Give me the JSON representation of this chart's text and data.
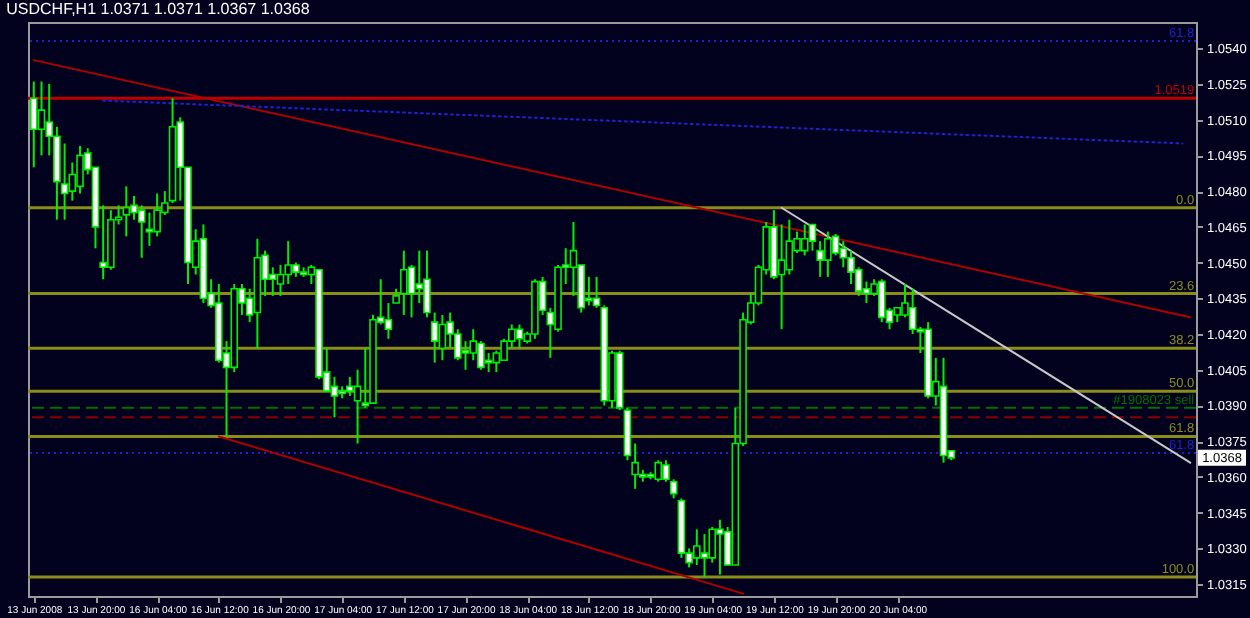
{
  "chart_data": {
    "type": "candlestick",
    "title": "USDCHF,H1 1.0371 1.0371 1.0367 1.0368",
    "categories": [
      "13 Jun 2008",
      null,
      null,
      null,
      null,
      null,
      null,
      null,
      "13 Jun 20:00",
      null,
      null,
      null,
      null,
      null,
      null,
      null,
      "16 Jun 04:00",
      null,
      null,
      null,
      null,
      null,
      null,
      null,
      "16 Jun 12:00",
      null,
      null,
      null,
      null,
      null,
      null,
      null,
      "16 Jun 20:00",
      null,
      null,
      null,
      null,
      null,
      null,
      null,
      "17 Jun 04:00",
      null,
      null,
      null,
      null,
      null,
      null,
      null,
      "17 Jun 12:00",
      null,
      null,
      null,
      null,
      null,
      null,
      null,
      "17 Jun 20:00",
      null,
      null,
      null,
      null,
      null,
      null,
      null,
      "18 Jun 04:00",
      null,
      null,
      null,
      null,
      null,
      null,
      null,
      "18 Jun 12:00",
      null,
      null,
      null,
      null,
      null,
      null,
      null,
      "18 Jun 20:00",
      null,
      null,
      null,
      null,
      null,
      null,
      null,
      "19 Jun 04:00",
      null,
      null,
      null,
      null,
      null,
      null,
      null,
      "19 Jun 12:00",
      null,
      null,
      null,
      null,
      null,
      null,
      null,
      "19 Jun 20:00",
      null,
      null,
      null,
      null,
      null,
      null,
      null,
      "20 Jun 04:00",
      null,
      null,
      null,
      null,
      null,
      null,
      null,
      null,
      null,
      null,
      null,
      null,
      null,
      null,
      null,
      null,
      null,
      null,
      null,
      null,
      null,
      null,
      null,
      null,
      null,
      null,
      null,
      null,
      null,
      null,
      null,
      null,
      null,
      null,
      null,
      null,
      null,
      null
    ],
    "ohlc": [
      [
        1.0519,
        1.0526,
        1.049,
        1.0506
      ],
      [
        1.0506,
        1.0526,
        1.0495,
        1.0514
      ],
      [
        1.0509,
        1.0525,
        1.0495,
        1.0503
      ],
      [
        1.0503,
        1.0507,
        1.0468,
        1.0484
      ],
      [
        1.0483,
        1.05,
        1.0468,
        1.0479
      ],
      [
        1.048,
        1.0492,
        1.0476,
        1.0487
      ],
      [
        1.0482,
        1.0499,
        1.0479,
        1.0495
      ],
      [
        1.0496,
        1.0498,
        1.0487,
        1.0489
      ],
      [
        1.049,
        1.049,
        1.0456,
        1.0465
      ],
      [
        1.045,
        1.0474,
        1.0443,
        1.0448
      ],
      [
        1.0448,
        1.0472,
        1.0447,
        1.0468
      ],
      [
        1.0468,
        1.0474,
        1.0466,
        1.0469
      ],
      [
        1.047,
        1.0482,
        1.0461,
        1.0473
      ],
      [
        1.0474,
        1.0478,
        1.0468,
        1.0471
      ],
      [
        1.0472,
        1.0474,
        1.0452,
        1.0467
      ],
      [
        1.0464,
        1.0471,
        1.0457,
        1.0463
      ],
      [
        1.0463,
        1.0479,
        1.0461,
        1.0472
      ],
      [
        1.0471,
        1.048,
        1.047,
        1.0475
      ],
      [
        1.0476,
        1.0519,
        1.0475,
        1.0507
      ],
      [
        1.0509,
        1.0511,
        1.0476,
        1.049
      ],
      [
        1.049,
        1.049,
        1.0441,
        1.045
      ],
      [
        1.0448,
        1.0464,
        1.0445,
        1.0459
      ],
      [
        1.046,
        1.0466,
        1.0433,
        1.0435
      ],
      [
        1.0437,
        1.0443,
        1.0431,
        1.0432
      ],
      [
        1.0433,
        1.0441,
        1.0408,
        1.0409
      ],
      [
        1.0412,
        1.0417,
        1.0377,
        1.0406
      ],
      [
        1.0406,
        1.0441,
        1.0404,
        1.0439
      ],
      [
        1.0439,
        1.0441,
        1.0428,
        1.0433
      ],
      [
        1.0435,
        1.0439,
        1.0425,
        1.0428
      ],
      [
        1.0429,
        1.046,
        1.0414,
        1.0452
      ],
      [
        1.0453,
        1.0455,
        1.0436,
        1.0443
      ],
      [
        1.0445,
        1.0448,
        1.0436,
        1.0443
      ],
      [
        1.0441,
        1.0449,
        1.0436,
        1.0445
      ],
      [
        1.0445,
        1.0459,
        1.0441,
        1.0449
      ],
      [
        1.0449,
        1.045,
        1.0444,
        1.0446
      ],
      [
        1.0446,
        1.0448,
        1.0444,
        1.0445
      ],
      [
        1.0445,
        1.0449,
        1.0441,
        1.0448
      ],
      [
        1.0447,
        1.0447,
        1.0401,
        1.0402
      ],
      [
        1.0404,
        1.0414,
        1.0396,
        1.0396
      ],
      [
        1.0398,
        1.0402,
        1.0385,
        1.0394
      ],
      [
        1.0396,
        1.0398,
        1.0393,
        1.0395
      ],
      [
        1.0398,
        1.0402,
        1.0394,
        1.0396
      ],
      [
        1.0392,
        1.0405,
        1.0374,
        1.0398
      ],
      [
        1.0391,
        1.0414,
        1.0389,
        1.039
      ],
      [
        1.0391,
        1.0428,
        1.0391,
        1.0426
      ],
      [
        1.0427,
        1.0443,
        1.0424,
        1.0425
      ],
      [
        1.0426,
        1.0433,
        1.0418,
        1.0422
      ],
      [
        1.0433,
        1.0439,
        1.0433,
        1.0436
      ],
      [
        1.0437,
        1.0455,
        1.0428,
        1.0447
      ],
      [
        1.0448,
        1.0449,
        1.0427,
        1.0437
      ],
      [
        1.0441,
        1.0455,
        1.0433,
        1.0439
      ],
      [
        1.0443,
        1.0455,
        1.0427,
        1.0429
      ],
      [
        1.0425,
        1.0429,
        1.0408,
        1.0417
      ],
      [
        1.0414,
        1.0428,
        1.0409,
        1.0424
      ],
      [
        1.0425,
        1.0429,
        1.0414,
        1.042
      ],
      [
        1.042,
        1.0422,
        1.0409,
        1.041
      ],
      [
        1.0413,
        1.0417,
        1.0405,
        1.0412
      ],
      [
        1.0412,
        1.0422,
        1.0409,
        1.0417
      ],
      [
        1.0416,
        1.0417,
        1.0405,
        1.0406
      ],
      [
        1.0409,
        1.0412,
        1.0404,
        1.0408
      ],
      [
        1.0408,
        1.0413,
        1.0404,
        1.0412
      ],
      [
        1.0409,
        1.0418,
        1.0409,
        1.0417
      ],
      [
        1.0417,
        1.0424,
        1.0414,
        1.0422
      ],
      [
        1.0422,
        1.0424,
        1.0414,
        1.0418
      ],
      [
        1.0417,
        1.0421,
        1.0416,
        1.042
      ],
      [
        1.042,
        1.0443,
        1.0418,
        1.0442
      ],
      [
        1.0442,
        1.0444,
        1.0428,
        1.043
      ],
      [
        1.0429,
        1.0431,
        1.041,
        1.0424
      ],
      [
        1.0422,
        1.0449,
        1.0421,
        1.0448
      ],
      [
        1.0449,
        1.0456,
        1.0441,
        1.0448
      ],
      [
        1.0448,
        1.0467,
        1.0436,
        1.0455
      ],
      [
        1.0449,
        1.0449,
        1.0429,
        1.0431
      ],
      [
        1.0435,
        1.0444,
        1.0432,
        1.0434
      ],
      [
        1.0435,
        1.0444,
        1.0431,
        1.0432
      ],
      [
        1.0431,
        1.0432,
        1.039,
        1.0392
      ],
      [
        1.0392,
        1.0413,
        1.0389,
        1.0412
      ],
      [
        1.0412,
        1.0413,
        1.0388,
        1.0389
      ],
      [
        1.0388,
        1.0389,
        1.0367,
        1.0369
      ],
      [
        1.0361,
        1.0374,
        1.0355,
        1.0366
      ],
      [
        1.0361,
        1.0363,
        1.0358,
        1.036
      ],
      [
        1.0361,
        1.0362,
        1.0359,
        1.036
      ],
      [
        1.0359,
        1.0367,
        1.0358,
        1.0366
      ],
      [
        1.0365,
        1.0367,
        1.0358,
        1.0359
      ],
      [
        1.0358,
        1.0359,
        1.0351,
        1.0353
      ],
      [
        1.035,
        1.0351,
        1.0326,
        1.0328
      ],
      [
        1.0328,
        1.033,
        1.0322,
        1.0324
      ],
      [
        1.0326,
        1.0338,
        1.0323,
        1.0331
      ],
      [
        1.0328,
        1.0336,
        1.0318,
        1.0326
      ],
      [
        1.0326,
        1.0339,
        1.0324,
        1.0338
      ],
      [
        1.0338,
        1.0342,
        1.0319,
        1.0336
      ],
      [
        1.0337,
        1.0339,
        1.0323,
        1.0323
      ],
      [
        1.0323,
        1.0389,
        1.0323,
        1.0374
      ],
      [
        1.0374,
        1.0429,
        1.0373,
        1.0426
      ],
      [
        1.0425,
        1.0437,
        1.0424,
        1.0433
      ],
      [
        1.0433,
        1.0449,
        1.0432,
        1.0448
      ],
      [
        1.0447,
        1.0467,
        1.0445,
        1.0465
      ],
      [
        1.0465,
        1.0472,
        1.0443,
        1.0444
      ],
      [
        1.0445,
        1.0466,
        1.0422,
        1.0451
      ],
      [
        1.0447,
        1.0468,
        1.0445,
        1.0459
      ],
      [
        1.0455,
        1.0463,
        1.0454,
        1.046
      ],
      [
        1.0455,
        1.0466,
        1.0453,
        1.046
      ],
      [
        1.0466,
        1.0466,
        1.0455,
        1.0459
      ],
      [
        1.0455,
        1.0459,
        1.0444,
        1.0451
      ],
      [
        1.0451,
        1.0463,
        1.0444,
        1.046
      ],
      [
        1.0461,
        1.0462,
        1.0453,
        1.0454
      ],
      [
        1.0456,
        1.0459,
        1.0448,
        1.0452
      ],
      [
        1.0452,
        1.0455,
        1.0441,
        1.0446
      ],
      [
        1.0447,
        1.0448,
        1.0436,
        1.0438
      ],
      [
        1.0439,
        1.0442,
        1.0433,
        1.0437
      ],
      [
        1.0437,
        1.0443,
        1.0436,
        1.0441
      ],
      [
        1.0442,
        1.0443,
        1.0425,
        1.0427
      ],
      [
        1.043,
        1.0431,
        1.0422,
        1.0425
      ],
      [
        1.0428,
        1.0431,
        1.0425,
        1.0431
      ],
      [
        1.0428,
        1.0441,
        1.0427,
        1.0433
      ],
      [
        1.0431,
        1.0439,
        1.042,
        1.0422
      ],
      [
        1.0422,
        1.0423,
        1.0412,
        1.0421
      ],
      [
        1.0422,
        1.0425,
        1.0393,
        1.0394
      ],
      [
        1.0394,
        1.041,
        1.039,
        1.04
      ],
      [
        1.0398,
        1.041,
        1.0366,
        1.0369
      ],
      [
        1.0371,
        1.0371,
        1.0367,
        1.0368
      ],
      null,
      null,
      null,
      null,
      null,
      null,
      null,
      null,
      null,
      null,
      null,
      null,
      null,
      null,
      null,
      null,
      null,
      null,
      null,
      null,
      null,
      null,
      null,
      null,
      null,
      null,
      null,
      null,
      null,
      null,
      null
    ],
    "series": [
      {
        "type": "line",
        "color": "#b00000",
        "line_style": "solid",
        "values": [
          1.0535,
          null,
          null,
          null,
          null,
          null,
          null,
          null,
          null,
          null,
          null,
          null,
          null,
          null,
          null,
          null,
          null,
          null,
          null,
          null,
          null,
          null,
          null,
          null,
          null,
          null,
          null,
          null,
          null,
          null,
          null,
          null,
          null,
          null,
          null,
          null,
          null,
          null,
          null,
          null,
          null,
          null,
          null,
          null,
          null,
          null,
          null,
          null,
          null,
          null,
          null,
          null,
          null,
          null,
          null,
          null,
          null,
          null,
          null,
          null,
          null,
          null,
          null,
          null,
          null,
          null,
          null,
          null,
          null,
          null,
          null,
          null,
          null,
          null,
          null,
          null,
          null,
          null,
          null,
          null,
          null,
          null,
          null,
          null,
          null,
          null,
          null,
          null,
          null,
          null,
          null,
          null,
          null,
          null,
          null,
          null,
          null,
          null,
          null,
          null,
          null,
          null,
          null,
          null,
          null,
          null,
          null,
          null,
          null,
          null,
          null,
          null,
          null,
          null,
          null,
          null,
          null,
          null,
          null,
          null,
          null,
          null,
          null,
          null,
          null,
          null,
          null,
          null,
          null,
          null,
          null,
          null,
          null,
          null,
          null,
          null,
          null,
          null,
          null,
          null,
          null,
          null,
          null,
          null,
          null,
          null,
          null,
          null,
          null,
          null,
          1.0427
        ]
      },
      {
        "type": "line",
        "color": "#b00000",
        "line_style": "solid",
        "values": [
          null,
          null,
          null,
          null,
          null,
          null,
          null,
          null,
          null,
          null,
          null,
          null,
          null,
          null,
          null,
          null,
          null,
          null,
          null,
          null,
          null,
          null,
          null,
          null,
          1.0377,
          null,
          null,
          null,
          null,
          null,
          null,
          null,
          null,
          null,
          null,
          null,
          null,
          null,
          null,
          null,
          null,
          null,
          null,
          null,
          null,
          null,
          null,
          null,
          null,
          null,
          null,
          null,
          null,
          null,
          null,
          null,
          null,
          null,
          null,
          null,
          null,
          null,
          null,
          null,
          null,
          null,
          null,
          null,
          null,
          null,
          null,
          null,
          null,
          null,
          null,
          null,
          null,
          null,
          null,
          null,
          null,
          null,
          null,
          null,
          null,
          null,
          null,
          null,
          null,
          null,
          null,
          null,
          1.0311,
          null,
          null,
          null,
          null,
          null,
          null,
          null,
          null,
          null,
          null,
          null,
          null,
          null,
          null,
          null,
          null,
          null,
          null,
          null,
          null,
          null,
          null,
          null,
          null,
          null,
          null,
          null,
          null,
          null,
          null,
          null,
          null,
          null,
          null,
          null,
          null,
          null,
          null,
          null,
          null,
          null,
          null,
          null,
          null,
          null,
          null,
          null,
          null,
          null,
          null,
          null,
          null,
          null,
          null,
          null,
          null,
          null,
          null
        ]
      },
      {
        "type": "line",
        "color": "#c8c8c8",
        "line_style": "solid",
        "values": [
          null,
          null,
          null,
          null,
          null,
          null,
          null,
          null,
          null,
          null,
          null,
          null,
          null,
          null,
          null,
          null,
          null,
          null,
          null,
          null,
          null,
          null,
          null,
          null,
          null,
          null,
          null,
          null,
          null,
          null,
          null,
          null,
          null,
          null,
          null,
          null,
          null,
          null,
          null,
          null,
          null,
          null,
          null,
          null,
          null,
          null,
          null,
          null,
          null,
          null,
          null,
          null,
          null,
          null,
          null,
          null,
          null,
          null,
          null,
          null,
          null,
          null,
          null,
          null,
          null,
          null,
          null,
          null,
          null,
          null,
          null,
          null,
          null,
          null,
          null,
          null,
          null,
          null,
          null,
          null,
          null,
          null,
          null,
          null,
          null,
          null,
          null,
          null,
          null,
          null,
          null,
          null,
          null,
          null,
          null,
          null,
          null,
          1.0473,
          null,
          null,
          null,
          null,
          null,
          null,
          null,
          null,
          null,
          null,
          null,
          null,
          null,
          null,
          null,
          null,
          null,
          null,
          null,
          null,
          null,
          null,
          null,
          null,
          null,
          null,
          null,
          null,
          null,
          null,
          null,
          null,
          null,
          null,
          null,
          null,
          null,
          null,
          null,
          null,
          null,
          null,
          null,
          null,
          null,
          null,
          null,
          null,
          null,
          null,
          null,
          null,
          1.0366
        ]
      },
      {
        "type": "line",
        "color": "#2020cc",
        "line_style": "dotted",
        "values": [
          null,
          null,
          null,
          null,
          null,
          null,
          null,
          null,
          null,
          1.0518,
          null,
          null,
          null,
          null,
          null,
          null,
          null,
          null,
          null,
          null,
          null,
          null,
          null,
          null,
          null,
          null,
          null,
          null,
          null,
          null,
          null,
          null,
          null,
          null,
          null,
          null,
          null,
          null,
          null,
          null,
          null,
          null,
          null,
          null,
          null,
          null,
          null,
          null,
          null,
          null,
          null,
          null,
          null,
          null,
          null,
          null,
          null,
          null,
          null,
          null,
          null,
          null,
          null,
          null,
          null,
          null,
          null,
          null,
          null,
          null,
          null,
          null,
          null,
          null,
          null,
          null,
          null,
          null,
          null,
          null,
          null,
          null,
          null,
          null,
          null,
          null,
          null,
          null,
          null,
          null,
          null,
          null,
          null,
          null,
          null,
          null,
          null,
          null,
          null,
          null,
          null,
          null,
          null,
          null,
          null,
          null,
          null,
          null,
          null,
          null,
          null,
          null,
          null,
          null,
          null,
          null,
          null,
          null,
          null,
          null,
          null,
          null,
          null,
          null,
          null,
          null,
          null,
          null,
          null,
          null,
          null,
          null,
          null,
          null,
          null,
          null,
          null,
          null,
          null,
          null,
          null,
          null,
          null,
          null,
          null,
          null,
          null,
          null,
          null,
          1.05,
          null
        ]
      }
    ],
    "ylim": [
      1.031,
      1.0551
    ],
    "yticks": [
      {
        "value": 1.054,
        "label": "1.0540"
      },
      1.0525,
      {
        "value": 1.051,
        "label": "1.0510"
      },
      1.0495,
      {
        "value": 1.048,
        "label": "1.0480"
      },
      1.0465,
      {
        "value": 1.045,
        "label": "1.0450"
      },
      1.0435,
      {
        "value": 1.042,
        "label": "1.0420"
      },
      1.0405,
      {
        "value": 1.039,
        "label": "1.0390"
      },
      1.0375,
      {
        "value": 1.036,
        "label": "1.0360"
      },
      1.0345,
      {
        "value": 1.033,
        "label": "1.0330"
      },
      1.0315
    ],
    "ref_lines": [
      {
        "axis": "y",
        "value": 1.0519,
        "label": "1.0519",
        "color": "#c00000"
      },
      {
        "axis": "y",
        "value": 1.0473,
        "color": "#8c8c1a"
      },
      {
        "axis": "y",
        "value": 1.0437,
        "color": "#8c8c1a"
      },
      {
        "axis": "y",
        "value": 1.0414,
        "color": "#8c8c1a"
      },
      {
        "axis": "y",
        "value": 1.0396,
        "color": "#8c8c1a"
      },
      {
        "axis": "y",
        "value": 1.0377,
        "color": "#8c8c1a"
      },
      {
        "axis": "y",
        "value": 1.0318,
        "color": "#8c8c1a"
      },
      {
        "axis": "y",
        "value": 1.0389,
        "label": "#1908023 sell",
        "color": "#007000",
        "line_style": "dashed"
      },
      {
        "axis": "y",
        "value": 1.0385,
        "color": "#8b0000",
        "line_style": "dashed"
      },
      {
        "axis": "y",
        "value": 1.0543,
        "color": "#2020cc",
        "line_style": "dotted"
      },
      {
        "axis": "y",
        "value": 1.037,
        "color": "#2020cc",
        "line_style": "dotted"
      }
    ],
    "annotations": [
      "1.0368",
      {
        "text": "0.0",
        "y": 1.0473
      },
      {
        "text": "23.6",
        "y": 1.0437
      },
      {
        "text": "38.2",
        "y": 1.0414
      },
      {
        "text": "50.0",
        "y": 1.0396
      },
      {
        "text": "61.8",
        "y": 1.0377
      },
      {
        "text": "100.0",
        "y": 1.0318
      },
      {
        "text": "61.8",
        "y": 1.0543
      },
      {
        "text": "61.8",
        "y": 1.037
      }
    ]
  }
}
